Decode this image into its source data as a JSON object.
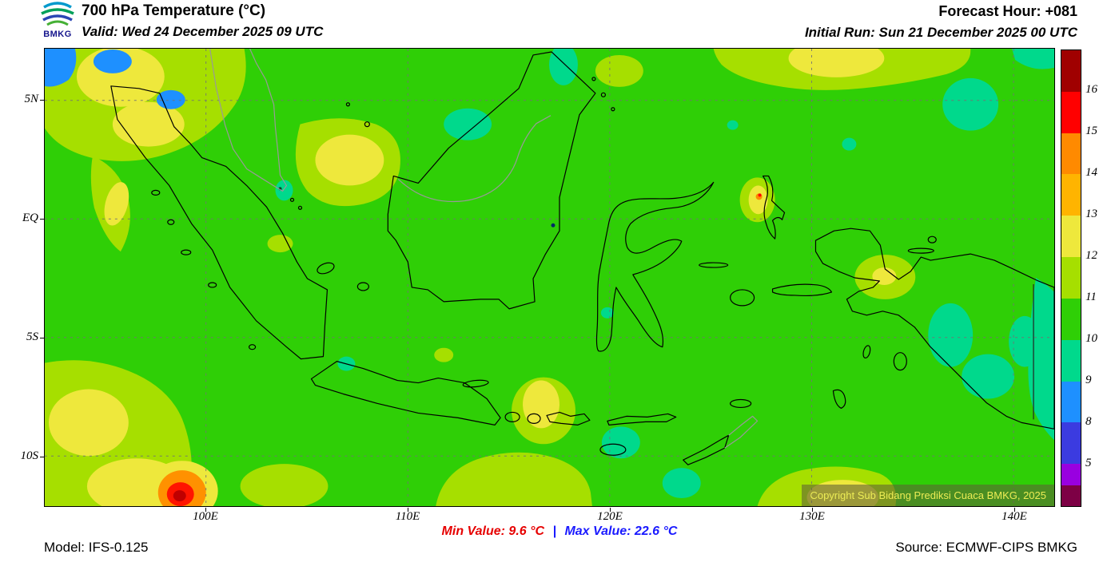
{
  "header": {
    "title": "700 hPa Temperature (°C)",
    "valid_line": "Valid: Wed 24 December 2025 09 UTC",
    "forecast_hour": "Forecast Hour: +081",
    "initial_run": "Initial Run: Sun 21 December 2025 00 UTC",
    "logo_label": "BMKG"
  },
  "map": {
    "y_axis_labels": [
      "5N",
      "EQ",
      "5S",
      "10S"
    ],
    "x_axis_labels": [
      "100E",
      "110E",
      "120E",
      "130E",
      "140E"
    ],
    "copyright": "Copyright Sub Bidang Prediksi Cuaca BMKG, 2025",
    "base_color": "#2fcf06"
  },
  "colorbar": {
    "labels": [
      "16",
      "15",
      "14",
      "13",
      "12",
      "11",
      "10",
      "9",
      "8",
      "5"
    ],
    "segments": [
      "#a00000",
      "#ff0000",
      "#ff8a00",
      "#ffb400",
      "#eee83c",
      "#a6df00",
      "#2fcf06",
      "#00d98c",
      "#1e90ff",
      "#3b3be0",
      "#9900e0",
      "#7d0045"
    ]
  },
  "footer": {
    "model": "Model: IFS-0.125",
    "min_label": "Min Value:",
    "min_value": "9.6 °C",
    "separator": "|",
    "max_label": "Max Value:",
    "max_value": "22.6 °C",
    "source": "Source: ECMWF-CIPS BMKG"
  }
}
